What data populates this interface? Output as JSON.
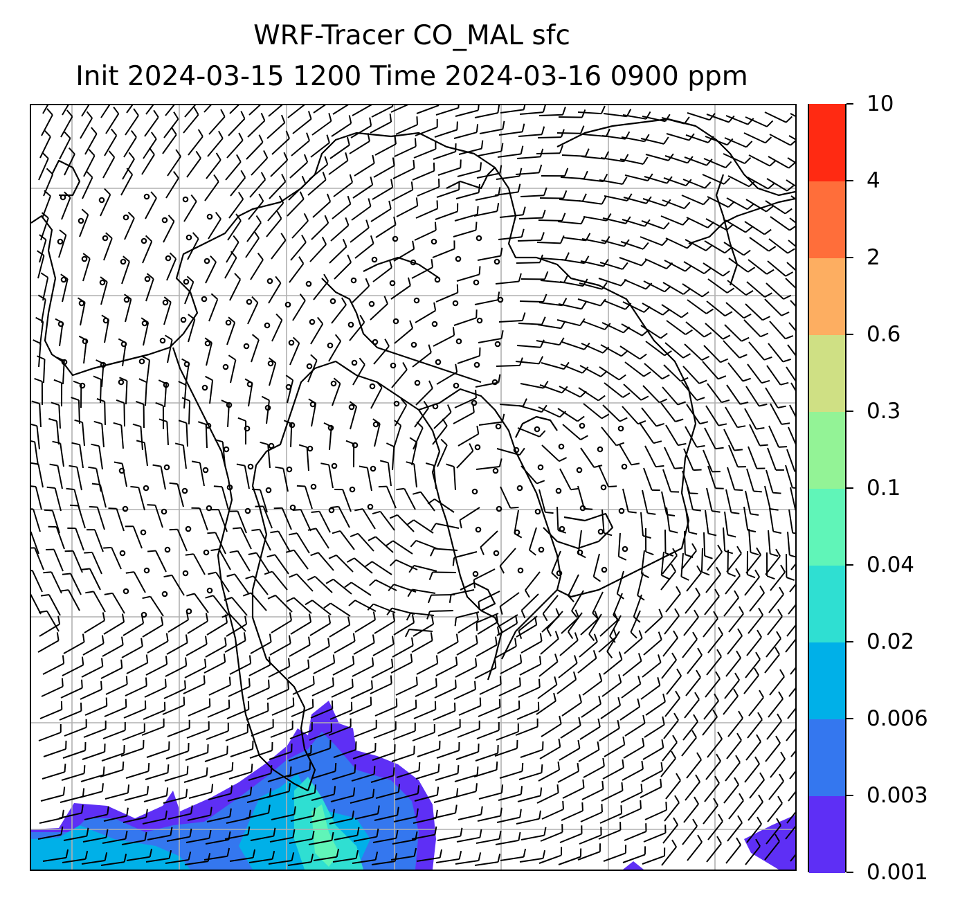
{
  "title": {
    "line1": "WRF-Tracer CO_MAL sfc",
    "line2": "Init 2024-03-15 1200 Time 2024-03-16 0900 ppm"
  },
  "colorbar": {
    "levels": [
      "0.001",
      "0.003",
      "0.006",
      "0.02",
      "0.04",
      "0.1",
      "0.3",
      "0.6",
      "2",
      "4",
      "10"
    ],
    "colors": [
      "#5e2ff5",
      "#3477ef",
      "#00b0e8",
      "#2fdfd2",
      "#60f5b8",
      "#93f396",
      "#cfe084",
      "#fdae61",
      "#ff6e3a",
      "#ff2a12"
    ]
  },
  "map": {
    "plume_colors": [
      "#5e2ff5",
      "#3477ef",
      "#00b0e8",
      "#2fdfd2",
      "#60f5b8"
    ],
    "gridline_color": "#b0b0b0"
  }
}
